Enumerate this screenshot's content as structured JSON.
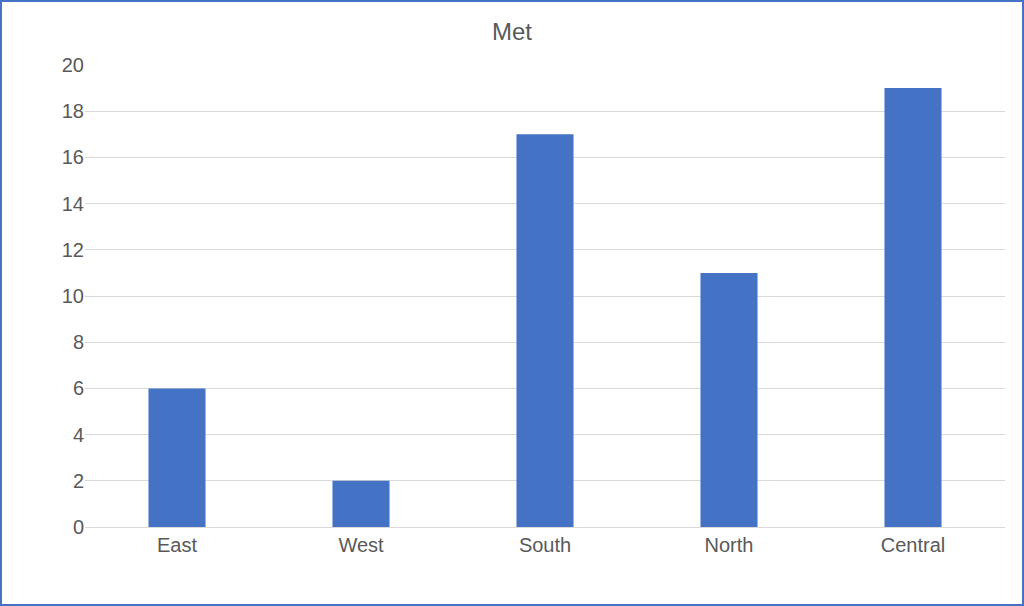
{
  "chart_data": {
    "type": "bar",
    "title": "Met",
    "categories": [
      "East",
      "West",
      "South",
      "North",
      "Central"
    ],
    "values": [
      6,
      2,
      17,
      11,
      19
    ],
    "color": "#4472c4",
    "ylim": [
      0,
      20
    ],
    "yticks": [
      0,
      2,
      4,
      6,
      8,
      10,
      12,
      14,
      16,
      18,
      20
    ],
    "grid": true
  }
}
